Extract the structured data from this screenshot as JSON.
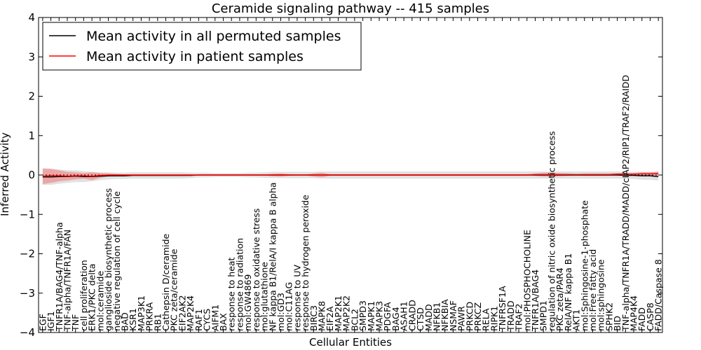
{
  "chart_data": {
    "type": "line",
    "title": "Ceramide signaling pathway -- 415 samples",
    "xlabel": "Cellular Entities",
    "ylabel": "Inferred Activity",
    "ylim": [
      -4,
      4
    ],
    "yticks": [
      "4",
      "3",
      "2",
      "1",
      "0",
      "−1",
      "−2",
      "−3",
      "−4"
    ],
    "ytick_values": [
      4,
      3,
      2,
      1,
      0,
      -1,
      -2,
      -3,
      -4
    ],
    "legend_position": "top-left",
    "categories": [
      "EGF",
      "IGF1",
      "TNFR1A/BAG4/TNF-alpha",
      "TNF-alpha/TNFR1A/FAN",
      "TNF",
      "cell proliferation",
      "ERK1/PKC delta",
      "mol:ceramide",
      "ganglioside biosynthetic process",
      "negative regulation of cell cycle",
      "BAD",
      "KSR1",
      "MAP3K1",
      "PRKRA",
      "RB1",
      "Cathepsin D/ceramide",
      "PKC zeta/ceramide",
      "EIF2AK2",
      "MAP2K4",
      "RAF1",
      "CYCS",
      "AIFM1",
      "BAX",
      "response to heat",
      "response to radiation",
      "mol:GW4869",
      "response to oxidative stress",
      "mol:glutathione",
      "NF kappa B1/RelA/I kappa B alpha",
      "mol:GD3",
      "mol:C11AG",
      "response to UV",
      "response to hydrogen peroxide",
      "BIRC3",
      "MAPK8",
      "EIF2A",
      "MAP2K1",
      "MAP2K2",
      "BCL2",
      "SMPD3",
      "MAPK1",
      "MAPK3",
      "PDGFA",
      "BAG4",
      "ASAH1",
      "CRADD",
      "CTSD",
      "MADD",
      "NFKB1",
      "NFKBIA",
      "NSMAF",
      "PAWR",
      "PRKCD",
      "PRKCZ",
      "RELA",
      "RIPK1",
      "TNFRSF1A",
      "TRADD",
      "TRAF2",
      "mol:PHOSPHOCHOLINE",
      "TNFR1A/BAG4",
      "SMPD1",
      "regulation of nitric oxide biosynthetic process",
      "PKC zeta/PAR4",
      "RelA/NF kappa B1",
      "AKT1",
      "mol:Sphingosine-1-phosphate",
      "mol:Free fatty acid",
      "mol:sphingosine",
      "SPHK2",
      "BID",
      "TNF-alpha/TNFR1A/TRADD/MADD/cIAP2/RIP1/TRAF2/RAIDD",
      "MAP4K4",
      "FADD",
      "CASP8",
      "FADD/Caspase 8"
    ],
    "series": [
      {
        "name": "Mean activity in all permuted samples",
        "color": "#000000",
        "band_color": "#c8c8c8",
        "values": [
          -0.05,
          -0.05,
          -0.04,
          -0.04,
          -0.03,
          -0.04,
          -0.04,
          -0.03,
          -0.02,
          -0.02,
          -0.02,
          -0.01,
          -0.01,
          -0.01,
          -0.01,
          -0.01,
          -0.01,
          -0.01,
          -0.01,
          0,
          0,
          0,
          0,
          0,
          0,
          0,
          0,
          0,
          0,
          0,
          0,
          0,
          0,
          0,
          0,
          0,
          0,
          0,
          0,
          0,
          0,
          0,
          0,
          0,
          0,
          0,
          0,
          0,
          0,
          0,
          0,
          0,
          0,
          0,
          0,
          0,
          0,
          0,
          0,
          0,
          0,
          0,
          0,
          0,
          0,
          0,
          0,
          0,
          0,
          0,
          0,
          -0.01,
          -0.01,
          -0.02,
          -0.02,
          -0.04
        ],
        "band": [
          0.2,
          0.2,
          0.18,
          0.16,
          0.15,
          0.14,
          0.12,
          0.1,
          0.09,
          0.08,
          0.08,
          0.08,
          0.08,
          0.08,
          0.08,
          0.08,
          0.08,
          0.08,
          0.07,
          0.06,
          0.06,
          0.05,
          0.05,
          0.05,
          0.05,
          0.06,
          0.06,
          0.07,
          0.08,
          0.08,
          0.08,
          0.08,
          0.08,
          0.08,
          0.09,
          0.09,
          0.09,
          0.09,
          0.09,
          0.09,
          0.09,
          0.09,
          0.09,
          0.09,
          0.09,
          0.09,
          0.09,
          0.09,
          0.09,
          0.09,
          0.09,
          0.09,
          0.09,
          0.09,
          0.09,
          0.09,
          0.09,
          0.09,
          0.09,
          0.09,
          0.09,
          0.09,
          0.09,
          0.09,
          0.09,
          0.09,
          0.09,
          0.09,
          0.09,
          0.09,
          0.09,
          0.09,
          0.09,
          0.1,
          0.1,
          0.1
        ]
      },
      {
        "name": "Mean activity in patient samples",
        "color": "#ff0000",
        "band_color": "#f08080",
        "values": [
          -0.03,
          -0.02,
          -0.02,
          -0.03,
          -0.02,
          -0.02,
          -0.03,
          -0.01,
          0,
          0,
          0,
          0,
          0,
          0,
          0,
          0,
          0,
          0,
          0,
          0,
          0,
          0,
          0,
          0,
          0,
          0,
          0,
          0,
          0,
          0,
          0,
          0,
          0,
          0,
          0,
          0,
          0,
          0,
          0,
          0,
          0,
          0,
          0,
          0,
          0,
          0,
          0,
          0,
          0,
          0,
          0,
          0,
          0,
          0,
          0,
          0,
          0,
          0,
          0,
          0,
          0.01,
          0.01,
          0.01,
          0.01,
          0.01,
          0.01,
          0.01,
          0.01,
          0.01,
          0.01,
          0.02,
          0.02,
          0.02,
          0.03,
          0.03,
          0.04
        ],
        "band": [
          0.2,
          0.18,
          0.14,
          0.11,
          0.09,
          0.07,
          0.1,
          0.06,
          0.04,
          0.03,
          0.02,
          0.02,
          0.02,
          0.02,
          0.02,
          0.02,
          0.02,
          0.02,
          0.02,
          0.01,
          0.01,
          0.01,
          0.01,
          0.01,
          0.01,
          0.01,
          0.01,
          0.01,
          0.03,
          0.04,
          0.02,
          0.01,
          0.01,
          0.04,
          0.06,
          0.02,
          0.02,
          0.02,
          0.02,
          0.02,
          0.02,
          0.02,
          0.02,
          0.02,
          0.02,
          0.02,
          0.02,
          0.02,
          0.02,
          0.02,
          0.02,
          0.02,
          0.02,
          0.02,
          0.02,
          0.02,
          0.02,
          0.02,
          0.02,
          0.02,
          0.03,
          0.05,
          0.05,
          0.04,
          0.03,
          0.02,
          0.03,
          0.03,
          0.03,
          0.03,
          0.03,
          0.03,
          0.03,
          0.04,
          0.04,
          0.05
        ]
      }
    ]
  }
}
